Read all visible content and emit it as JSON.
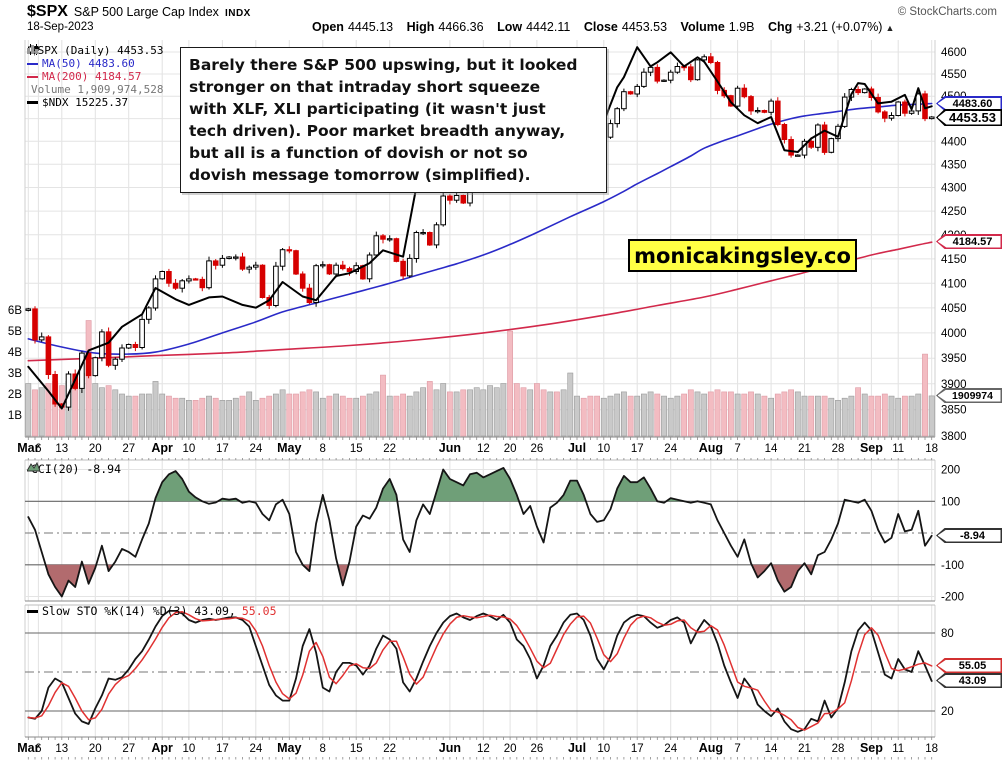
{
  "header": {
    "symbol": "$SPX",
    "name": "S&P 500 Large Cap Index",
    "exchange": "INDX",
    "credit": "© StockCharts.com",
    "date": "18-Sep-2023",
    "stats": [
      {
        "label": "Open",
        "value": "4445.13"
      },
      {
        "label": "High",
        "value": "4466.36"
      },
      {
        "label": "Low",
        "value": "4442.11"
      },
      {
        "label": "Close",
        "value": "4453.53"
      },
      {
        "label": "Volume",
        "value": "1.9B"
      },
      {
        "label": "Chg",
        "value": "+3.21 (+0.07%)"
      }
    ],
    "up_arrow": "▲"
  },
  "legend": {
    "spx": "$SPX (Daily) 4453.53",
    "ma50": "MA(50) 4483.60",
    "ma200": "MA(200) 4184.57",
    "volume": "Volume 1,909,974,528",
    "ndx": "$NDX 15225.37",
    "cci": "CCI(20) -8.94",
    "sto_black": "Slow STO %K(14) %D(3) 43.09,",
    "sto_red": "55.05"
  },
  "annotation": {
    "lines": [
      "Barely there S&P 500 upswing, but it looked",
      "stronger on that intraday short squeeze",
      "with XLF, XLI participating (it wasn't just",
      "tech driven). Poor market breadth anyway,",
      "but all is a function of dovish or not so",
      "dovish message tomorrow (simplified)."
    ]
  },
  "watermark": "monicakingsley.co",
  "callouts": {
    "ma50": "4483.60",
    "close": "4453.53",
    "ma200": "4184.57",
    "volume": "1909974",
    "cci": "-8.94",
    "sto_d": "55.05",
    "sto_k": "43.09"
  },
  "colors": {
    "candle_up": "#000000",
    "candle_down": "#d60000",
    "ma50": "#2a2ac8",
    "ma200": "#d2294b",
    "ndx": "#000000",
    "volume_up": "#c9c9c9",
    "volume_down": "#f3bcc2",
    "cci_pos_fill": "#6f9f78",
    "cci_neg_fill": "#b26b6e",
    "sto_d_line": "#e03131",
    "watermark_bg": "#ffff44"
  },
  "chart_data": [
    {
      "type": "candlestick",
      "title": "$SPX Daily with MA(50), MA(200), Volume overlay and $NDX line",
      "y_axis": {
        "scale": "log",
        "range": [
          3800,
          4600
        ],
        "tick_step": 50,
        "position": "right"
      },
      "volume_axis": {
        "ticks": [
          "1B",
          "2B",
          "3B",
          "4B",
          "5B",
          "6B"
        ],
        "position": "left"
      },
      "x_axis": {
        "days": 136,
        "labels": [
          {
            "t": "Mar",
            "i": 0,
            "b": 1
          },
          {
            "t": "6",
            "i": 1.5
          },
          {
            "t": "13",
            "i": 5
          },
          {
            "t": "20",
            "i": 10
          },
          {
            "t": "27",
            "i": 15
          },
          {
            "t": "Apr",
            "i": 20,
            "b": 1
          },
          {
            "t": "10",
            "i": 24
          },
          {
            "t": "17",
            "i": 29
          },
          {
            "t": "24",
            "i": 34
          },
          {
            "t": "May",
            "i": 39,
            "b": 1
          },
          {
            "t": "8",
            "i": 44
          },
          {
            "t": "15",
            "i": 49
          },
          {
            "t": "22",
            "i": 54
          },
          {
            "t": "Jun",
            "i": 63,
            "b": 1
          },
          {
            "t": "12",
            "i": 68
          },
          {
            "t": "20",
            "i": 72
          },
          {
            "t": "26",
            "i": 76
          },
          {
            "t": "Jul",
            "i": 82,
            "b": 1
          },
          {
            "t": "10",
            "i": 86
          },
          {
            "t": "17",
            "i": 91
          },
          {
            "t": "24",
            "i": 96
          },
          {
            "t": "Aug",
            "i": 102,
            "b": 1
          },
          {
            "t": "7",
            "i": 106
          },
          {
            "t": "14",
            "i": 111
          },
          {
            "t": "21",
            "i": 116
          },
          {
            "t": "28",
            "i": 121
          },
          {
            "t": "Sep",
            "i": 126,
            "b": 1
          },
          {
            "t": "11",
            "i": 130
          },
          {
            "t": "18",
            "i": 135
          }
        ]
      },
      "close": [
        4048,
        3986,
        3992,
        3918,
        3861,
        3855,
        3919,
        3891,
        3960,
        3916,
        3951,
        4002,
        3936,
        3948,
        3970,
        3977,
        3971,
        4027,
        4050,
        4109,
        4124,
        4100,
        4090,
        4105,
        4109,
        4108,
        4091,
        4146,
        4137,
        4151,
        4154,
        4154,
        4129,
        4133,
        4137,
        4071,
        4055,
        4135,
        4169,
        4167,
        4119,
        4090,
        4061,
        4136,
        4138,
        4119,
        4137,
        4130,
        4124,
        4136,
        4109,
        4158,
        4198,
        4191,
        4192,
        4145,
        4115,
        4151,
        4205,
        4205,
        4179,
        4221,
        4282,
        4273,
        4283,
        4267,
        4293,
        4298,
        4338,
        4369,
        4372,
        4425,
        4409,
        4388,
        4365,
        4381,
        4348,
        4328,
        4378,
        4376,
        4396,
        4450,
        4455,
        4446,
        4411,
        4398,
        4409,
        4439,
        4472,
        4510,
        4505,
        4522,
        4554,
        4565,
        4534,
        4536,
        4554,
        4567,
        4566,
        4537,
        4582,
        4589,
        4576,
        4513,
        4501,
        4478,
        4518,
        4499,
        4467,
        4468,
        4464,
        4489,
        4437,
        4404,
        4370,
        4370,
        4400,
        4387,
        4436,
        4376,
        4406,
        4433,
        4498,
        4515,
        4508,
        4516,
        4497,
        4465,
        4451,
        4457,
        4487,
        4462,
        4467,
        4505,
        4450,
        4453.53
      ],
      "volume_b": [
        2.5,
        2.2,
        2.3,
        2.5,
        2.6,
        2.4,
        2.6,
        2.7,
        3.0,
        5.5,
        2.5,
        2.3,
        2.4,
        2.2,
        2.0,
        1.9,
        1.9,
        2.0,
        2.0,
        2.6,
        2.0,
        1.9,
        1.8,
        1.8,
        1.7,
        1.7,
        1.8,
        1.9,
        1.8,
        1.7,
        1.7,
        1.8,
        1.9,
        2.1,
        1.7,
        1.8,
        1.9,
        2.0,
        2.2,
        2.0,
        2.0,
        2.1,
        2.2,
        2.1,
        1.8,
        1.9,
        2.0,
        1.9,
        1.8,
        1.8,
        1.9,
        2.0,
        2.1,
        2.9,
        1.9,
        1.9,
        2.0,
        1.9,
        2.1,
        2.3,
        2.6,
        2.2,
        2.5,
        2.1,
        2.1,
        2.2,
        2.2,
        2.3,
        2.2,
        2.4,
        2.3,
        2.5,
        5.0,
        2.5,
        2.3,
        2.2,
        2.5,
        2.2,
        2.1,
        2.1,
        2.2,
        3.0,
        1.9,
        1.8,
        1.9,
        1.9,
        1.8,
        1.9,
        2.0,
        2.1,
        1.9,
        1.9,
        2.0,
        2.1,
        2.0,
        1.9,
        1.8,
        1.9,
        2.0,
        2.2,
        2.1,
        2.0,
        2.1,
        2.2,
        2.1,
        2.1,
        2.0,
        2.0,
        2.1,
        2.0,
        1.9,
        1.8,
        2.0,
        2.1,
        2.2,
        2.1,
        1.9,
        1.9,
        1.9,
        1.9,
        1.8,
        1.7,
        1.8,
        1.9,
        2.3,
        2.0,
        1.9,
        1.9,
        2.0,
        1.9,
        1.8,
        1.9,
        1.9,
        2.0,
        3.9,
        1.91
      ],
      "ma50": [
        [
          0,
          3988
        ],
        [
          5,
          3972
        ],
        [
          10,
          3960
        ],
        [
          15,
          3958
        ],
        [
          19,
          3962
        ],
        [
          24,
          3978
        ],
        [
          29,
          4000
        ],
        [
          34,
          4022
        ],
        [
          38,
          4042
        ],
        [
          43,
          4060
        ],
        [
          48,
          4078
        ],
        [
          53,
          4096
        ],
        [
          58,
          4116
        ],
        [
          61,
          4128
        ],
        [
          64,
          4140
        ],
        [
          68,
          4158
        ],
        [
          72,
          4180
        ],
        [
          76,
          4205
        ],
        [
          81,
          4238
        ],
        [
          86,
          4270
        ],
        [
          89,
          4292
        ],
        [
          91,
          4308
        ],
        [
          94,
          4330
        ],
        [
          96,
          4345
        ],
        [
          99,
          4368
        ],
        [
          101,
          4385
        ],
        [
          104,
          4402
        ],
        [
          106,
          4412
        ],
        [
          109,
          4428
        ],
        [
          111,
          4438
        ],
        [
          114,
          4450
        ],
        [
          116,
          4456
        ],
        [
          119,
          4462
        ],
        [
          121,
          4466
        ],
        [
          124,
          4472
        ],
        [
          127,
          4476
        ],
        [
          130,
          4480
        ],
        [
          133,
          4482
        ],
        [
          135,
          4483.6
        ]
      ],
      "ma200": [
        [
          0,
          3945
        ],
        [
          10,
          3950
        ],
        [
          19,
          3955
        ],
        [
          29,
          3960
        ],
        [
          38,
          3967
        ],
        [
          48,
          3975
        ],
        [
          58,
          3986
        ],
        [
          68,
          4000
        ],
        [
          78,
          4018
        ],
        [
          88,
          4040
        ],
        [
          94,
          4055
        ],
        [
          101,
          4072
        ],
        [
          106,
          4088
        ],
        [
          111,
          4105
        ],
        [
          116,
          4122
        ],
        [
          121,
          4140
        ],
        [
          126,
          4158
        ],
        [
          130,
          4170
        ],
        [
          133,
          4179
        ],
        [
          135,
          4184.57
        ]
      ],
      "ndx": [
        [
          0,
          12350
        ],
        [
          3,
          12100
        ],
        [
          5,
          11923
        ],
        [
          9,
          12520
        ],
        [
          12,
          12600
        ],
        [
          14,
          12767
        ],
        [
          17,
          12900
        ],
        [
          19,
          13181
        ],
        [
          22,
          13060
        ],
        [
          24,
          13000
        ],
        [
          27,
          13080
        ],
        [
          29,
          13090
        ],
        [
          32,
          13000
        ],
        [
          34,
          12970
        ],
        [
          36,
          13050
        ],
        [
          38,
          13245
        ],
        [
          41,
          13090
        ],
        [
          43,
          13050
        ],
        [
          46,
          13310
        ],
        [
          48,
          13340
        ],
        [
          51,
          13450
        ],
        [
          53,
          13590
        ],
        [
          56,
          13520
        ],
        [
          58,
          14298
        ],
        [
          60,
          14254
        ],
        [
          63,
          14546
        ],
        [
          65,
          14380
        ],
        [
          67,
          14528
        ],
        [
          69,
          14850
        ],
        [
          71,
          15083
        ],
        [
          73,
          14950
        ],
        [
          75,
          14891
        ],
        [
          77,
          15050
        ],
        [
          79,
          15060
        ],
        [
          81,
          15179
        ],
        [
          83,
          15210
        ],
        [
          85,
          14920
        ],
        [
          86,
          15045
        ],
        [
          88,
          15450
        ],
        [
          89,
          15571
        ],
        [
          91,
          15932
        ],
        [
          93,
          15700
        ],
        [
          94,
          15750
        ],
        [
          96,
          15870
        ],
        [
          98,
          15700
        ],
        [
          100,
          15810
        ],
        [
          101,
          15757
        ],
        [
          103,
          15520
        ],
        [
          105,
          15274
        ],
        [
          107,
          15120
        ],
        [
          109,
          15028
        ],
        [
          111,
          15100
        ],
        [
          113,
          14715
        ],
        [
          115,
          14694
        ],
        [
          117,
          14850
        ],
        [
          119,
          14942
        ],
        [
          121,
          14869
        ],
        [
          123,
          15370
        ],
        [
          124,
          15501
        ],
        [
          125,
          15490
        ],
        [
          127,
          15260
        ],
        [
          129,
          15280
        ],
        [
          131,
          15360
        ],
        [
          132,
          15190
        ],
        [
          133,
          15440
        ],
        [
          134,
          15202
        ],
        [
          135,
          15225.37
        ]
      ],
      "ndx_range": [
        11900,
        15990
      ],
      "ndx_price_map": [
        3848,
        4622
      ]
    },
    {
      "type": "line",
      "name": "CCI(20)",
      "last": -8.94,
      "y_ticks": [
        200,
        100,
        -100,
        -200
      ],
      "bands": [
        100,
        -100
      ],
      "values": [
        50,
        10,
        -60,
        -130,
        -170,
        -200,
        -150,
        -170,
        -90,
        -160,
        -110,
        -40,
        -120,
        -90,
        -50,
        -60,
        -75,
        -20,
        30,
        110,
        160,
        185,
        195,
        170,
        130,
        112,
        100,
        92,
        96,
        108,
        105,
        108,
        95,
        100,
        95,
        60,
        40,
        90,
        105,
        60,
        -60,
        -100,
        -120,
        30,
        120,
        40,
        -80,
        -165,
        -90,
        20,
        55,
        45,
        80,
        140,
        170,
        120,
        -20,
        -60,
        40,
        90,
        60,
        130,
        200,
        170,
        160,
        150,
        185,
        190,
        175,
        185,
        195,
        205,
        170,
        120,
        60,
        85,
        20,
        -30,
        80,
        95,
        120,
        165,
        165,
        120,
        60,
        35,
        40,
        75,
        140,
        180,
        160,
        160,
        175,
        140,
        100,
        95,
        110,
        105,
        100,
        95,
        100,
        95,
        90,
        40,
        0,
        -40,
        -75,
        -20,
        -95,
        -140,
        -120,
        -95,
        -150,
        -185,
        -170,
        -120,
        -95,
        -130,
        -70,
        -60,
        -20,
        30,
        105,
        100,
        95,
        105,
        70,
        10,
        -30,
        -15,
        60,
        5,
        10,
        70,
        -40,
        -8.94
      ]
    },
    {
      "type": "line",
      "name": "Slow STO %K(14) %D(3)",
      "last_k": 43.09,
      "last_d": 55.05,
      "d_smoothing": 3,
      "y_ticks": [
        80,
        20
      ],
      "mid": 50,
      "k_values": [
        15,
        14,
        20,
        38,
        45,
        42,
        30,
        18,
        12,
        10,
        22,
        32,
        45,
        44,
        46,
        52,
        60,
        66,
        75,
        85,
        93,
        97,
        97,
        95,
        90,
        88,
        90,
        91,
        90,
        91,
        92,
        92,
        90,
        85,
        70,
        55,
        40,
        32,
        28,
        28,
        45,
        70,
        83,
        65,
        38,
        35,
        50,
        57,
        57,
        55,
        48,
        55,
        68,
        78,
        75,
        68,
        42,
        35,
        45,
        58,
        70,
        80,
        88,
        93,
        95,
        92,
        90,
        93,
        95,
        93,
        90,
        94,
        88,
        75,
        70,
        60,
        45,
        55,
        70,
        78,
        88,
        94,
        95,
        90,
        78,
        60,
        52,
        62,
        78,
        88,
        92,
        94,
        93,
        88,
        84,
        86,
        90,
        92,
        88,
        72,
        82,
        90,
        85,
        72,
        55,
        42,
        30,
        45,
        38,
        25,
        20,
        16,
        22,
        12,
        6,
        4,
        6,
        14,
        12,
        28,
        15,
        22,
        42,
        66,
        82,
        88,
        82,
        65,
        48,
        45,
        60,
        52,
        50,
        66,
        55,
        43.09
      ]
    }
  ]
}
